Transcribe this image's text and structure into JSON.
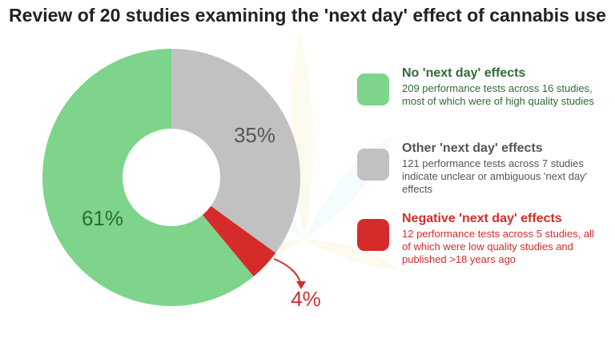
{
  "title": "Review of 20 studies examining the 'next day' effect of cannabis use",
  "chart_data": {
    "type": "pie",
    "slices": [
      {
        "label": "No 'next day' effects",
        "value": 61,
        "display": "61%",
        "color": "#7dd48a",
        "text_color": "#2e6b35"
      },
      {
        "label": "Other 'next day' effects",
        "value": 35,
        "display": "35%",
        "color": "#c1c1c1",
        "text_color": "#555555"
      },
      {
        "label": "Negative 'next day' effects",
        "value": 4,
        "display": "4%",
        "color": "#d62b2b",
        "text_color": "#d62b2b"
      }
    ],
    "legend_position": "right",
    "donut": true
  },
  "legend": [
    {
      "heading": "No 'next day' effects",
      "description": "209 performance tests across 16 studies, most of which were of high quality studies",
      "color": "#7dd48a",
      "heading_color": "#2e6b35",
      "text_color": "#2e6b35"
    },
    {
      "heading": "Other 'next day' effects",
      "description": "121 performance tests across 7 studies indicate unclear or ambiguous 'next day' effects",
      "color": "#c1c1c1",
      "heading_color": "#555555",
      "text_color": "#555555"
    },
    {
      "heading": "Negative 'next day' effects",
      "description": "12 performance tests across 5 studies, all of which were low quality studies and published >18 years ago",
      "color": "#d62b2b",
      "heading_color": "#d62b2b",
      "text_color": "#d62b2b"
    }
  ]
}
